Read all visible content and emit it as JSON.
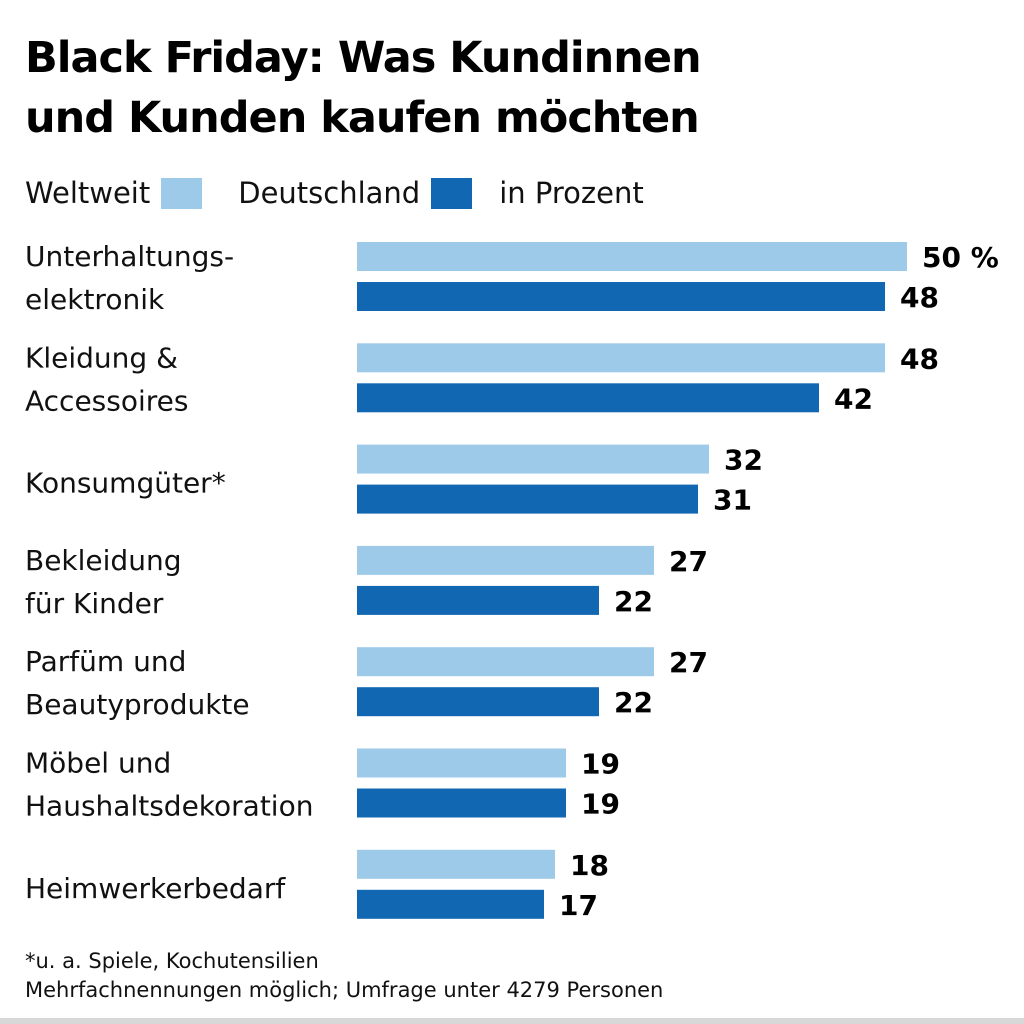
{
  "colors": {
    "weltweit": "#9ecaea",
    "deutschland": "#1167b1",
    "text": "#111111"
  },
  "title_lines": [
    "Black Friday: Was Kundinnen",
    "und Kunden kaufen möchten"
  ],
  "legend": {
    "weltweit": "Weltweit",
    "deutschland": "Deutschland",
    "unit": "in Prozent"
  },
  "chart_data": {
    "type": "bar",
    "orientation": "horizontal",
    "title": "Black Friday: Was Kundinnen und Kunden kaufen möchten",
    "unit_note": "in Prozent",
    "xlim": [
      0,
      50
    ],
    "grid": false,
    "categories": [
      [
        "Unterhaltungs-",
        "elektronik"
      ],
      [
        "Kleidung &",
        "Accessoires"
      ],
      [
        "Konsumgüter*"
      ],
      [
        "Bekleidung",
        "für Kinder"
      ],
      [
        "Parfüm und",
        "Beautyprodukte"
      ],
      [
        "Möbel und",
        "Haushaltsdekoration"
      ],
      [
        "Heimwerkerbedarf"
      ]
    ],
    "series": [
      {
        "name": "Weltweit",
        "color": "#9ecaea",
        "values": [
          50,
          48,
          32,
          27,
          27,
          19,
          18
        ],
        "labels": [
          "50 %",
          "48",
          "32",
          "27",
          "27",
          "19",
          "18"
        ]
      },
      {
        "name": "Deutschland",
        "color": "#1167b1",
        "values": [
          48,
          42,
          31,
          22,
          22,
          19,
          17
        ],
        "labels": [
          "48",
          "42",
          "31",
          "22",
          "22",
          "19",
          "17"
        ]
      }
    ]
  },
  "footnotes": [
    "*u. a. Spiele, Kochutensilien",
    "Mehrfachnennungen möglich; Umfrage unter 4279 Personen"
  ]
}
